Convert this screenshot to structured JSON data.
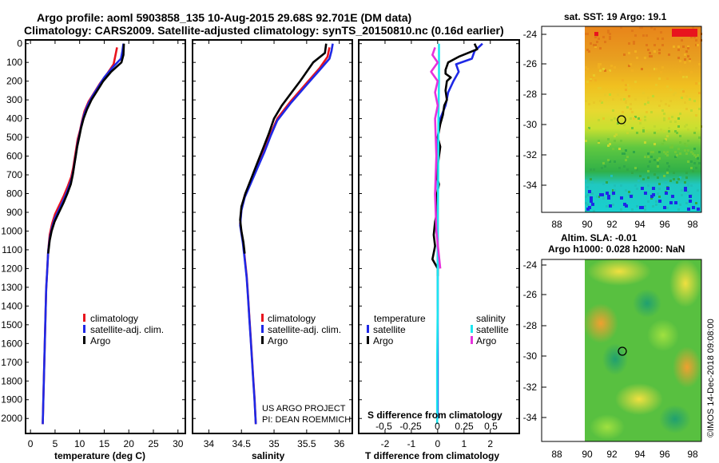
{
  "header": {
    "line1": "Argo profile: aoml 5903858_135 10-Aug-2015 29.68S 92.701E (DM data)",
    "line2": "Climatology: CARS2009. Satellite-adjusted climatology: synTS_20150810.nc (0.16d earlier)"
  },
  "colors": {
    "climatology": "#e8141e",
    "satellite": "#1e28e6",
    "argo": "#000000",
    "sat_salinity": "#1ee6f0",
    "argo_salinity": "#e632dc"
  },
  "chart_data": [
    {
      "type": "line",
      "id": "temperature",
      "xlabel": "temperature (deg C)",
      "ylabel": "",
      "xlim": [
        -1,
        31.5
      ],
      "ylim": [
        2080,
        -20
      ],
      "xticks": [
        "0",
        "5",
        "10",
        "15",
        "20",
        "25",
        "30"
      ],
      "yticks": [
        "0",
        "100",
        "200",
        "300",
        "400",
        "500",
        "600",
        "700",
        "800",
        "900",
        "1000",
        "1100",
        "1200",
        "1300",
        "1400",
        "1500",
        "1600",
        "1700",
        "1800",
        "1900",
        "2000"
      ],
      "legend": [
        "climatology",
        "satellite-adj. clim.",
        "Argo"
      ],
      "series": [
        {
          "name": "climatology",
          "color": "climatology",
          "points": [
            [
              17.6,
              20
            ],
            [
              17.3,
              60
            ],
            [
              16.9,
              110
            ],
            [
              15.6,
              160
            ],
            [
              14.2,
              210
            ],
            [
              13.0,
              260
            ],
            [
              11.8,
              310
            ],
            [
              11.0,
              360
            ],
            [
              10.5,
              410
            ],
            [
              10.1,
              460
            ],
            [
              9.6,
              510
            ],
            [
              9.3,
              560
            ],
            [
              9.0,
              610
            ],
            [
              8.7,
              660
            ],
            [
              8.3,
              710
            ],
            [
              7.6,
              760
            ],
            [
              6.8,
              810
            ],
            [
              5.9,
              860
            ],
            [
              5.0,
              910
            ],
            [
              4.4,
              960
            ],
            [
              3.9,
              1020
            ],
            [
              3.6,
              1110
            ],
            [
              3.4,
              1210
            ],
            [
              3.2,
              1310
            ],
            [
              3.1,
              1410
            ],
            [
              3.0,
              1510
            ],
            [
              2.9,
              1610
            ],
            [
              2.8,
              1710
            ],
            [
              2.7,
              1810
            ],
            [
              2.6,
              1910
            ],
            [
              2.5,
              2030
            ]
          ]
        },
        {
          "name": "satellite-adj. clim.",
          "color": "satellite",
          "points": [
            [
              18.9,
              0
            ],
            [
              18.7,
              40
            ],
            [
              18.4,
              80
            ],
            [
              16.6,
              130
            ],
            [
              15.0,
              180
            ],
            [
              13.8,
              230
            ],
            [
              12.6,
              280
            ],
            [
              11.6,
              330
            ],
            [
              10.9,
              380
            ],
            [
              10.4,
              430
            ],
            [
              10.0,
              480
            ],
            [
              9.6,
              530
            ],
            [
              9.3,
              580
            ],
            [
              9.0,
              630
            ],
            [
              8.7,
              680
            ],
            [
              8.3,
              730
            ],
            [
              7.6,
              780
            ],
            [
              6.8,
              830
            ],
            [
              5.9,
              880
            ],
            [
              5.0,
              930
            ],
            [
              4.4,
              980
            ],
            [
              3.9,
              1040
            ],
            [
              3.6,
              1110
            ],
            [
              3.4,
              1210
            ],
            [
              3.2,
              1310
            ],
            [
              3.1,
              1410
            ],
            [
              3.0,
              1510
            ],
            [
              2.9,
              1610
            ],
            [
              2.8,
              1710
            ],
            [
              2.7,
              1810
            ],
            [
              2.6,
              1910
            ],
            [
              2.5,
              2030
            ]
          ]
        },
        {
          "name": "Argo",
          "color": "argo",
          "points": [
            [
              19.0,
              0
            ],
            [
              18.9,
              60
            ],
            [
              18.5,
              100
            ],
            [
              16.4,
              150
            ],
            [
              14.8,
              200
            ],
            [
              13.6,
              250
            ],
            [
              12.4,
              300
            ],
            [
              11.5,
              350
            ],
            [
              10.8,
              400
            ],
            [
              10.3,
              450
            ],
            [
              9.9,
              500
            ],
            [
              9.5,
              550
            ],
            [
              9.2,
              600
            ],
            [
              8.9,
              650
            ],
            [
              8.6,
              700
            ],
            [
              8.2,
              750
            ],
            [
              7.5,
              800
            ],
            [
              6.7,
              850
            ],
            [
              5.8,
              900
            ],
            [
              4.9,
              950
            ],
            [
              4.3,
              1000
            ],
            [
              3.9,
              1050
            ],
            [
              3.6,
              1120
            ]
          ]
        }
      ]
    },
    {
      "type": "line",
      "id": "salinity",
      "xlabel": "salinity",
      "ylabel": "",
      "xlim": [
        33.75,
        36.2
      ],
      "ylim": [
        2080,
        -20
      ],
      "xticks": [
        "34",
        "34.5",
        "35",
        "35.5",
        "36"
      ],
      "legend": [
        "climatology",
        "satellite-adj. clim.",
        "Argo"
      ],
      "series": [
        {
          "name": "climatology",
          "color": "climatology",
          "points": [
            [
              35.85,
              20
            ],
            [
              35.82,
              70
            ],
            [
              35.7,
              130
            ],
            [
              35.55,
              190
            ],
            [
              35.4,
              250
            ],
            [
              35.25,
              310
            ],
            [
              35.05,
              400
            ],
            [
              34.95,
              480
            ],
            [
              34.85,
              570
            ],
            [
              34.75,
              650
            ],
            [
              34.65,
              730
            ],
            [
              34.55,
              810
            ],
            [
              34.5,
              880
            ],
            [
              34.48,
              960
            ],
            [
              34.52,
              1050
            ],
            [
              34.55,
              1140
            ],
            [
              34.58,
              1240
            ],
            [
              34.6,
              1340
            ],
            [
              34.62,
              1450
            ],
            [
              34.64,
              1560
            ],
            [
              34.66,
              1670
            ],
            [
              34.68,
              1780
            ],
            [
              34.7,
              1890
            ],
            [
              34.72,
              2030
            ]
          ]
        },
        {
          "name": "satellite-adj. clim.",
          "color": "satellite",
          "points": [
            [
              35.9,
              0
            ],
            [
              35.88,
              40
            ],
            [
              35.85,
              80
            ],
            [
              35.7,
              140
            ],
            [
              35.55,
              200
            ],
            [
              35.4,
              260
            ],
            [
              35.25,
              320
            ],
            [
              35.05,
              410
            ],
            [
              34.95,
              490
            ],
            [
              34.85,
              580
            ],
            [
              34.75,
              660
            ],
            [
              34.65,
              740
            ],
            [
              34.55,
              820
            ],
            [
              34.5,
              890
            ],
            [
              34.48,
              970
            ],
            [
              34.52,
              1060
            ],
            [
              34.55,
              1150
            ],
            [
              34.58,
              1250
            ],
            [
              34.6,
              1350
            ],
            [
              34.62,
              1460
            ],
            [
              34.64,
              1570
            ],
            [
              34.66,
              1680
            ],
            [
              34.68,
              1790
            ],
            [
              34.7,
              1900
            ],
            [
              34.72,
              2030
            ]
          ]
        },
        {
          "name": "Argo",
          "color": "argo",
          "points": [
            [
              35.8,
              0
            ],
            [
              35.78,
              50
            ],
            [
              35.6,
              100
            ],
            [
              35.5,
              150
            ],
            [
              35.4,
              200
            ],
            [
              35.27,
              260
            ],
            [
              35.12,
              330
            ],
            [
              35.0,
              400
            ],
            [
              34.92,
              480
            ],
            [
              34.83,
              560
            ],
            [
              34.74,
              640
            ],
            [
              34.65,
              720
            ],
            [
              34.56,
              800
            ],
            [
              34.5,
              870
            ],
            [
              34.48,
              940
            ],
            [
              34.5,
              1000
            ],
            [
              34.53,
              1060
            ],
            [
              34.55,
              1120
            ]
          ]
        }
      ],
      "credit1": "US ARGO PROJECT",
      "credit2": "PI: DEAN ROEMMICH"
    },
    {
      "type": "line",
      "id": "difference",
      "xlabel": "T difference from climatology",
      "top_label": "S difference from climatology",
      "xlim": [
        -3,
        3.1
      ],
      "ylim": [
        2080,
        -20
      ],
      "xticks": [
        "-2",
        "-1",
        "0",
        "1",
        "2"
      ],
      "sticks": [
        "-0.5",
        "-0.25",
        "0",
        "0.25",
        "0.5"
      ],
      "legend_left_title": "temperature",
      "legend_right_title": "salinity",
      "legend_left": [
        "satellite",
        "Argo"
      ],
      "legend_right": [
        "satellite",
        "Argo"
      ],
      "series": [
        {
          "name": "T satellite",
          "color": "satellite",
          "points": [
            [
              1.7,
              0
            ],
            [
              1.4,
              40
            ],
            [
              1.3,
              80
            ],
            [
              0.7,
              110
            ],
            [
              0.8,
              150
            ],
            [
              0.6,
              200
            ],
            [
              0.4,
              260
            ],
            [
              0.3,
              330
            ],
            [
              0.1,
              400
            ],
            [
              0.0,
              500
            ],
            [
              0.0,
              700
            ],
            [
              0.0,
              900
            ],
            [
              0.0,
              1100
            ],
            [
              0.0,
              1300
            ],
            [
              0.0,
              1600
            ],
            [
              0.0,
              2000
            ]
          ]
        },
        {
          "name": "T Argo",
          "color": "argo",
          "points": [
            [
              1.4,
              0
            ],
            [
              1.5,
              30
            ],
            [
              0.8,
              70
            ],
            [
              0.4,
              100
            ],
            [
              0.3,
              140
            ],
            [
              0.3,
              160
            ],
            [
              0.5,
              180
            ],
            [
              0.35,
              200
            ],
            [
              0.3,
              250
            ],
            [
              0.35,
              300
            ],
            [
              0.25,
              330
            ],
            [
              0.2,
              380
            ],
            [
              0.1,
              430
            ],
            [
              0.0,
              500
            ],
            [
              0.1,
              550
            ],
            [
              0.0,
              650
            ],
            [
              -0.05,
              700
            ],
            [
              0.05,
              750
            ],
            [
              -0.05,
              820
            ],
            [
              0.0,
              880
            ],
            [
              -0.1,
              950
            ],
            [
              -0.15,
              1020
            ],
            [
              -0.1,
              1080
            ],
            [
              -0.2,
              1150
            ],
            [
              0.0,
              1200
            ],
            [
              0.0,
              1240
            ]
          ]
        },
        {
          "name": "S satellite",
          "color": "sat_salinity",
          "points": [
            [
              0.05,
              0
            ],
            [
              0.05,
              200
            ],
            [
              0.03,
              400
            ],
            [
              0.02,
              700
            ],
            [
              0.0,
              1000
            ],
            [
              0.0,
              1400
            ],
            [
              -0.02,
              1700
            ],
            [
              -0.02,
              2030
            ]
          ]
        },
        {
          "name": "S Argo",
          "color": "argo_salinity",
          "points": [
            [
              -0.1,
              20
            ],
            [
              -0.2,
              60
            ],
            [
              0.0,
              100
            ],
            [
              -0.25,
              150
            ],
            [
              0.0,
              200
            ],
            [
              -0.1,
              260
            ],
            [
              0.0,
              330
            ],
            [
              -0.1,
              400
            ],
            [
              -0.05,
              600
            ],
            [
              -0.1,
              800
            ],
            [
              -0.05,
              1000
            ],
            [
              0.1,
              1200
            ]
          ]
        }
      ]
    },
    {
      "type": "heatmap",
      "id": "sst_map",
      "title": "sat. SST: 19 Argo: 19.1",
      "xticks": [
        "88",
        "90",
        "92",
        "94",
        "96",
        "98"
      ],
      "yticks": [
        "-24",
        "-26",
        "-28",
        "-30",
        "-32",
        "-34"
      ]
    },
    {
      "type": "heatmap",
      "id": "sla_map",
      "title1": "Altim. SLA: -0.01",
      "title2": "Argo h1000: 0.028 h2000: NaN",
      "xticks": [
        "88",
        "90",
        "92",
        "94",
        "96",
        "98"
      ],
      "yticks": [
        "-24",
        "-26",
        "-28",
        "-30",
        "-32",
        "-34"
      ]
    }
  ],
  "footer": {
    "watermark": "©IMOS 14-Dec-2018 09:08:00"
  }
}
